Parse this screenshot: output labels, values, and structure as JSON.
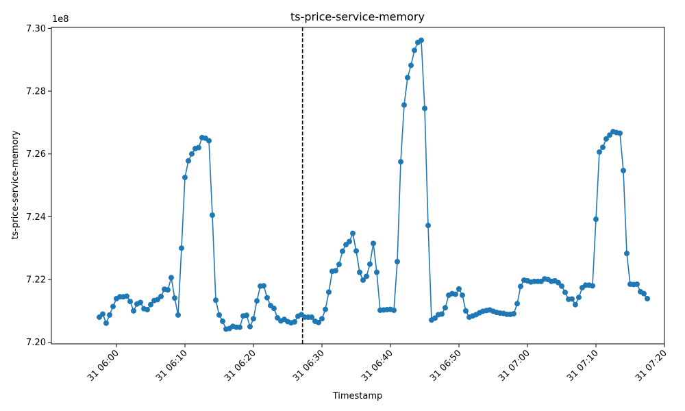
{
  "chart_data": {
    "type": "line",
    "title": "ts-price-service-memory",
    "xlabel": "Timestamp",
    "ylabel": "ts-price-service-memory",
    "y_offset_label": "1e8",
    "y_scale": 100000000,
    "ylim": [
      7.1995,
      7.3003
    ],
    "xlim": [
      "05:50:30",
      "07:20:00"
    ],
    "x_ticks": [
      {
        "time": "06:00",
        "label": "31 06:00"
      },
      {
        "time": "06:10",
        "label": "31 06:10"
      },
      {
        "time": "06:20",
        "label": "31 06:20"
      },
      {
        "time": "06:30",
        "label": "31 06:30"
      },
      {
        "time": "06:40",
        "label": "31 06:40"
      },
      {
        "time": "06:50",
        "label": "31 06:50"
      },
      {
        "time": "07:00",
        "label": "31 07:00"
      },
      {
        "time": "07:10",
        "label": "31 07:10"
      },
      {
        "time": "07:20",
        "label": "31 07:20"
      }
    ],
    "y_ticks": [
      {
        "value": 7.2,
        "label": "7.20"
      },
      {
        "value": 7.22,
        "label": "7.22"
      },
      {
        "value": 7.24,
        "label": "7.24"
      },
      {
        "value": 7.26,
        "label": "7.26"
      },
      {
        "value": 7.28,
        "label": "7.28"
      },
      {
        "value": 7.3,
        "label": "7.30"
      }
    ],
    "vline": {
      "time": "06:27:10",
      "style": "dashed",
      "color": "#000000"
    },
    "line_color": "#1f77b4",
    "grid": false,
    "series": [
      {
        "points": [
          [
            "05:57:30",
            7.208
          ],
          [
            "05:58:00",
            7.209
          ],
          [
            "05:58:30",
            7.2061
          ],
          [
            "05:59:00",
            7.2087
          ],
          [
            "05:59:30",
            7.2114
          ],
          [
            "06:00:00",
            7.2139
          ],
          [
            "06:00:30",
            7.2145
          ],
          [
            "06:01:00",
            7.2145
          ],
          [
            "06:01:30",
            7.2147
          ],
          [
            "06:02:00",
            7.213
          ],
          [
            "06:02:30",
            7.21
          ],
          [
            "06:03:00",
            7.2122
          ],
          [
            "06:03:30",
            7.2127
          ],
          [
            "06:04:00",
            7.2107
          ],
          [
            "06:04:30",
            7.2104
          ],
          [
            "06:05:00",
            7.212
          ],
          [
            "06:05:30",
            7.2133
          ],
          [
            "06:06:00",
            7.2136
          ],
          [
            "06:06:30",
            7.2146
          ],
          [
            "06:07:00",
            7.2169
          ],
          [
            "06:07:30",
            7.2167
          ],
          [
            "06:08:00",
            7.2206
          ],
          [
            "06:08:30",
            7.2141
          ],
          [
            "06:09:00",
            7.2087
          ],
          [
            "06:09:30",
            7.23
          ],
          [
            "06:10:00",
            7.2525
          ],
          [
            "06:10:30",
            7.2578
          ],
          [
            "06:11:00",
            7.26
          ],
          [
            "06:11:30",
            7.2617
          ],
          [
            "06:12:00",
            7.262
          ],
          [
            "06:12:30",
            7.2652
          ],
          [
            "06:13:00",
            7.265
          ],
          [
            "06:13:30",
            7.2642
          ],
          [
            "06:14:00",
            7.2405
          ],
          [
            "06:14:30",
            7.2134
          ],
          [
            "06:15:00",
            7.2087
          ],
          [
            "06:15:30",
            7.2067
          ],
          [
            "06:16:00",
            7.2042
          ],
          [
            "06:16:30",
            7.2044
          ],
          [
            "06:17:00",
            7.2051
          ],
          [
            "06:17:30",
            7.2048
          ],
          [
            "06:18:00",
            7.2048
          ],
          [
            "06:18:30",
            7.2084
          ],
          [
            "06:19:00",
            7.2086
          ],
          [
            "06:19:30",
            7.205
          ],
          [
            "06:20:00",
            7.2075
          ],
          [
            "06:20:30",
            7.2132
          ],
          [
            "06:21:00",
            7.2179
          ],
          [
            "06:21:30",
            7.218
          ],
          [
            "06:22:00",
            7.2142
          ],
          [
            "06:22:30",
            7.2117
          ],
          [
            "06:23:00",
            7.2108
          ],
          [
            "06:23:30",
            7.2078
          ],
          [
            "06:24:00",
            7.2068
          ],
          [
            "06:24:30",
            7.2073
          ],
          [
            "06:25:00",
            7.2066
          ],
          [
            "06:25:30",
            7.2062
          ],
          [
            "06:26:00",
            7.2065
          ],
          [
            "06:26:30",
            7.2083
          ],
          [
            "06:27:00",
            7.2088
          ],
          [
            "06:27:30",
            7.208
          ],
          [
            "06:28:00",
            7.208
          ],
          [
            "06:28:30",
            7.208
          ],
          [
            "06:29:00",
            7.2067
          ],
          [
            "06:29:30",
            7.2063
          ],
          [
            "06:30:00",
            7.2075
          ],
          [
            "06:30:30",
            7.2105
          ],
          [
            "06:31:00",
            7.216
          ],
          [
            "06:31:30",
            7.2226
          ],
          [
            "06:32:00",
            7.2228
          ],
          [
            "06:32:30",
            7.2248
          ],
          [
            "06:33:00",
            7.229
          ],
          [
            "06:33:30",
            7.2311
          ],
          [
            "06:34:00",
            7.2321
          ],
          [
            "06:34:30",
            7.2347
          ],
          [
            "06:35:00",
            7.2291
          ],
          [
            "06:35:30",
            7.2223
          ],
          [
            "06:36:00",
            7.2198
          ],
          [
            "06:36:30",
            7.221
          ],
          [
            "06:37:00",
            7.2249
          ],
          [
            "06:37:30",
            7.2315
          ],
          [
            "06:38:00",
            7.2223
          ],
          [
            "06:38:30",
            7.2102
          ],
          [
            "06:39:00",
            7.2103
          ],
          [
            "06:39:30",
            7.2104
          ],
          [
            "06:40:00",
            7.2105
          ],
          [
            "06:40:30",
            7.2102
          ],
          [
            "06:41:00",
            7.2257
          ],
          [
            "06:41:30",
            7.2575
          ],
          [
            "06:42:00",
            7.2756
          ],
          [
            "06:42:30",
            7.2843
          ],
          [
            "06:43:00",
            7.2882
          ],
          [
            "06:43:30",
            7.293
          ],
          [
            "06:44:00",
            7.2955
          ],
          [
            "06:44:30",
            7.2962
          ],
          [
            "06:45:00",
            7.2745
          ],
          [
            "06:45:30",
            7.2372
          ],
          [
            "06:46:00",
            7.2071
          ],
          [
            "06:46:30",
            7.2077
          ],
          [
            "06:47:00",
            7.2088
          ],
          [
            "06:47:30",
            7.209
          ],
          [
            "06:48:00",
            7.211
          ],
          [
            "06:48:30",
            7.215
          ],
          [
            "06:49:00",
            7.2155
          ],
          [
            "06:49:30",
            7.2153
          ],
          [
            "06:50:00",
            7.217
          ],
          [
            "06:50:30",
            7.215
          ],
          [
            "06:51:00",
            7.21
          ],
          [
            "06:51:30",
            7.208
          ],
          [
            "06:52:00",
            7.2084
          ],
          [
            "06:52:30",
            7.2088
          ],
          [
            "06:53:00",
            7.2094
          ],
          [
            "06:53:30",
            7.2099
          ],
          [
            "06:54:00",
            7.2101
          ],
          [
            "06:54:30",
            7.2103
          ],
          [
            "06:55:00",
            7.2099
          ],
          [
            "06:55:30",
            7.2095
          ],
          [
            "06:56:00",
            7.2093
          ],
          [
            "06:56:30",
            7.2092
          ],
          [
            "06:57:00",
            7.2089
          ],
          [
            "06:57:30",
            7.2089
          ],
          [
            "06:58:00",
            7.2091
          ],
          [
            "06:58:30",
            7.2123
          ],
          [
            "06:59:00",
            7.2178
          ],
          [
            "06:59:30",
            7.2198
          ],
          [
            "07:00:00",
            7.2196
          ],
          [
            "07:00:30",
            7.2192
          ],
          [
            "07:01:00",
            7.2194
          ],
          [
            "07:01:30",
            7.2194
          ],
          [
            "07:02:00",
            7.2194
          ],
          [
            "07:02:30",
            7.2202
          ],
          [
            "07:03:00",
            7.22
          ],
          [
            "07:03:30",
            7.2194
          ],
          [
            "07:04:00",
            7.2196
          ],
          [
            "07:04:30",
            7.219
          ],
          [
            "07:05:00",
            7.2179
          ],
          [
            "07:05:30",
            7.2159
          ],
          [
            "07:06:00",
            7.2137
          ],
          [
            "07:06:30",
            7.2138
          ],
          [
            "07:07:00",
            7.212
          ],
          [
            "07:07:30",
            7.2143
          ],
          [
            "07:08:00",
            7.2174
          ],
          [
            "07:08:30",
            7.2182
          ],
          [
            "07:09:00",
            7.2182
          ],
          [
            "07:09:30",
            7.218
          ],
          [
            "07:10:00",
            7.2392
          ],
          [
            "07:10:30",
            7.2606
          ],
          [
            "07:11:00",
            7.2621
          ],
          [
            "07:11:30",
            7.2648
          ],
          [
            "07:12:00",
            7.266
          ],
          [
            "07:12:30",
            7.2671
          ],
          [
            "07:13:00",
            7.2668
          ],
          [
            "07:13:30",
            7.2666
          ],
          [
            "07:14:00",
            7.2547
          ],
          [
            "07:14:30",
            7.2283
          ],
          [
            "07:15:00",
            7.2185
          ],
          [
            "07:15:30",
            7.2184
          ],
          [
            "07:16:00",
            7.2185
          ],
          [
            "07:16:30",
            7.2161
          ],
          [
            "07:17:00",
            7.2155
          ],
          [
            "07:17:30",
            7.2139
          ]
        ]
      }
    ]
  }
}
